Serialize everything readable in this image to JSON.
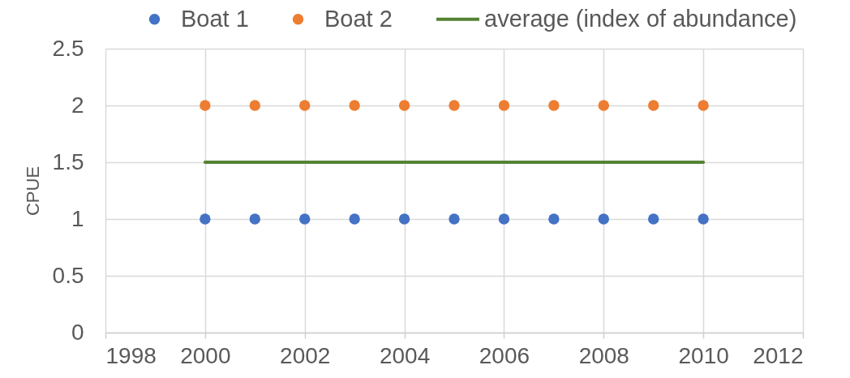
{
  "chart_data": {
    "type": "scatter",
    "x": [
      2000,
      2001,
      2002,
      2003,
      2004,
      2005,
      2006,
      2007,
      2008,
      2009,
      2010
    ],
    "series": [
      {
        "name": "Boat 1",
        "color": "#4472c4",
        "values": [
          1,
          1,
          1,
          1,
          1,
          1,
          1,
          1,
          1,
          1,
          1
        ]
      },
      {
        "name": "Boat 2",
        "color": "#ed7d31",
        "values": [
          2,
          2,
          2,
          2,
          2,
          2,
          2,
          2,
          2,
          2,
          2
        ]
      },
      {
        "name": "average (index of abundance)",
        "type": "line",
        "marker": "none",
        "color": "#548235",
        "values": [
          1.5,
          1.5,
          1.5,
          1.5,
          1.5,
          1.5,
          1.5,
          1.5,
          1.5,
          1.5,
          1.5
        ]
      }
    ],
    "ylabel": "CPUE",
    "xlim": [
      1998,
      2012
    ],
    "xticks": [
      1998,
      2000,
      2002,
      2004,
      2006,
      2008,
      2010,
      2012
    ],
    "ylim": [
      0,
      2.5
    ],
    "yticks": [
      0,
      0.5,
      1,
      1.5,
      2,
      2.5
    ],
    "grid": true,
    "legend": "top",
    "marker": "circle"
  }
}
